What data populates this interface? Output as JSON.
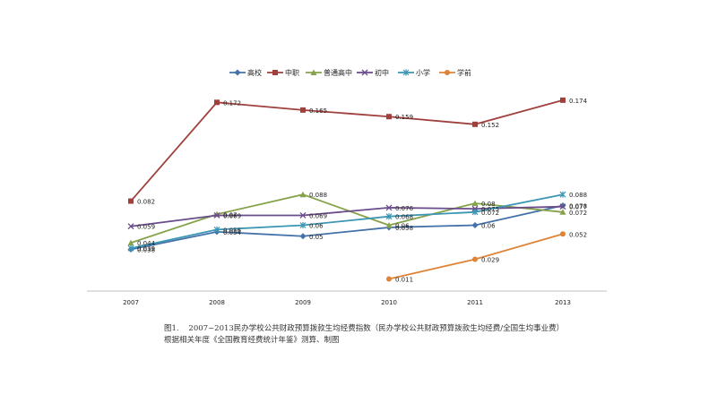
{
  "chart_data": {
    "type": "line",
    "categories": [
      "2007",
      "2008",
      "2009",
      "2010",
      "2011",
      "2013"
    ],
    "series": [
      {
        "name": "高校",
        "color": "#4472A8",
        "marker": "diamond",
        "values": [
          0.038,
          0.054,
          0.05,
          0.058,
          0.06,
          0.078
        ],
        "labels": [
          "0.038",
          "0.054",
          "0.05",
          "0.058",
          "0.06",
          "0.078"
        ]
      },
      {
        "name": "中职",
        "color": "#A0403C",
        "marker": "square",
        "values": [
          0.082,
          0.172,
          0.165,
          0.159,
          0.152,
          0.174
        ],
        "labels": [
          "0.082",
          "0.172",
          "0.165",
          "0.159",
          "0.152",
          "0.174"
        ]
      },
      {
        "name": "普通高中",
        "color": "#86A24A",
        "marker": "triangle",
        "values": [
          0.044,
          0.07,
          0.088,
          0.06,
          0.08,
          0.072
        ],
        "labels": [
          "0.044",
          "0.07",
          "0.088",
          "0.06",
          "0.08",
          "0.072"
        ]
      },
      {
        "name": "初中",
        "color": "#6A4C8C",
        "marker": "x",
        "values": [
          0.059,
          0.069,
          0.069,
          0.076,
          0.075,
          0.077
        ],
        "labels": [
          "0.059",
          "0.069",
          "0.069",
          "0.076",
          "0.075",
          "0.077"
        ]
      },
      {
        "name": "小学",
        "color": "#3C96B4",
        "marker": "star",
        "values": [
          0.039,
          0.056,
          0.06,
          0.068,
          0.072,
          0.088
        ],
        "labels": [
          "0.039",
          "0.056",
          "0.06",
          "0.068",
          "0.072",
          "0.088"
        ]
      },
      {
        "name": "学前",
        "color": "#DD8438",
        "marker": "circle",
        "values": [
          null,
          null,
          null,
          0.011,
          0.029,
          0.052
        ],
        "labels": [
          "",
          "",
          "",
          "0.011",
          "0.029",
          "0.052"
        ]
      }
    ],
    "ylim": [
      0,
      0.2
    ],
    "grid": false,
    "legend": "top"
  },
  "caption": {
    "text": "图1.    2007~2013民办学校公共财政预算拨款生均经费指数（民办学校公共财政预算拨款生均经费/全国生均事业费）根据相关年度《全国教育经费统计年鉴》测算、制图"
  }
}
